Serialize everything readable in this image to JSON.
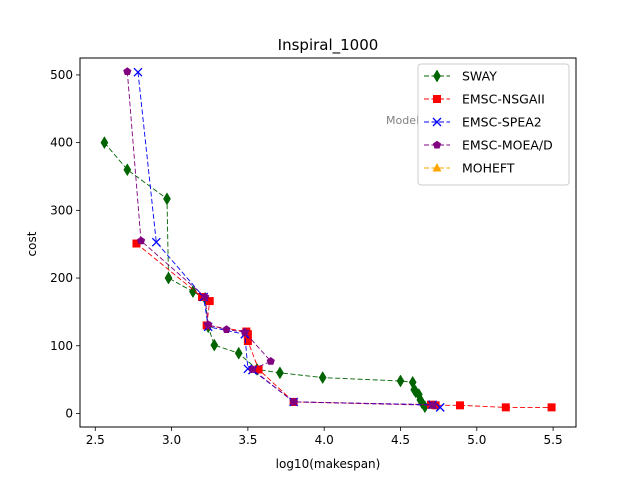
{
  "chart_data": {
    "type": "line",
    "title": "Inspiral_1000",
    "xlabel": "log10(makespan)",
    "ylabel": "cost",
    "xlim": [
      2.4,
      5.65
    ],
    "ylim": [
      -20,
      525
    ],
    "xticks": [
      2.5,
      3.0,
      3.5,
      4.0,
      4.5,
      5.0,
      5.5
    ],
    "xtick_labels": [
      "2.5",
      "3.0",
      "3.5",
      "4.0",
      "4.5",
      "5.0",
      "5.5"
    ],
    "yticks": [
      0,
      100,
      200,
      300,
      400,
      500
    ],
    "ytick_labels": [
      "0",
      "100",
      "200",
      "300",
      "400",
      "500"
    ],
    "grid": false,
    "legend_position": "top-right",
    "annotation": "Model",
    "series": [
      {
        "name": "SWAY",
        "color": "#006400",
        "marker": "diamond",
        "points": [
          [
            2.56,
            400
          ],
          [
            2.71,
            360
          ],
          [
            2.97,
            317
          ],
          [
            2.98,
            200
          ],
          [
            3.14,
            180
          ],
          [
            3.22,
            170
          ],
          [
            3.24,
            128
          ],
          [
            3.28,
            101
          ],
          [
            3.44,
            89
          ],
          [
            3.56,
            65
          ],
          [
            3.71,
            60
          ],
          [
            3.99,
            53
          ],
          [
            4.5,
            48
          ],
          [
            4.58,
            46
          ],
          [
            4.59,
            35
          ],
          [
            4.6,
            32
          ],
          [
            4.62,
            28
          ],
          [
            4.63,
            20
          ],
          [
            4.64,
            16
          ],
          [
            4.66,
            10
          ]
        ]
      },
      {
        "name": "EMSC-NSGAII",
        "color": "#ff0000",
        "marker": "square",
        "points": [
          [
            2.77,
            251
          ],
          [
            3.2,
            172
          ],
          [
            3.25,
            166
          ],
          [
            3.23,
            130
          ],
          [
            3.49,
            121
          ],
          [
            3.5,
            117
          ],
          [
            3.5,
            107
          ],
          [
            3.57,
            65
          ],
          [
            3.8,
            17
          ],
          [
            4.7,
            13
          ],
          [
            4.73,
            12
          ],
          [
            4.89,
            12
          ],
          [
            5.19,
            9
          ],
          [
            5.49,
            9
          ]
        ]
      },
      {
        "name": "EMSC-SPEA2",
        "color": "#0000ff",
        "marker": "x",
        "points": [
          [
            2.78,
            504
          ],
          [
            2.9,
            253
          ],
          [
            3.21,
            172
          ],
          [
            3.24,
            128
          ],
          [
            3.48,
            117
          ],
          [
            3.5,
            66
          ],
          [
            3.53,
            64
          ],
          [
            3.8,
            17
          ],
          [
            4.71,
            13
          ],
          [
            4.76,
            9
          ]
        ]
      },
      {
        "name": "EMSC-MOEA/D",
        "color": "#800080",
        "marker": "pentagon",
        "points": [
          [
            2.71,
            505
          ],
          [
            2.8,
            255
          ],
          [
            3.22,
            172
          ],
          [
            3.24,
            131
          ],
          [
            3.36,
            124
          ],
          [
            3.48,
            120
          ],
          [
            3.65,
            77
          ],
          [
            3.53,
            65
          ],
          [
            3.8,
            17
          ],
          [
            4.71,
            12
          ]
        ]
      },
      {
        "name": "MOHEFT",
        "color": "#ffa500",
        "marker": "triangle",
        "points": []
      }
    ]
  }
}
